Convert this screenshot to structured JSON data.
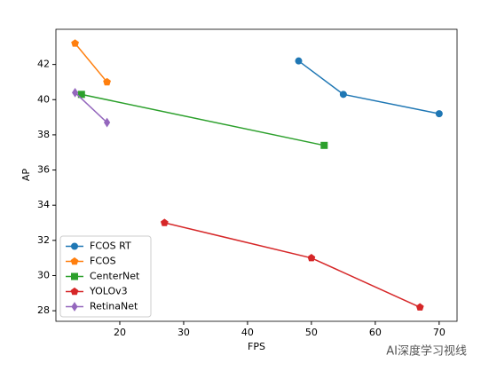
{
  "chart_data": {
    "type": "line",
    "xlabel": "FPS",
    "ylabel": "AP",
    "xlim": [
      10,
      72.8
    ],
    "ylim": [
      27.4,
      44.0
    ],
    "xticks": [
      20,
      30,
      40,
      50,
      60,
      70
    ],
    "yticks": [
      28,
      30,
      32,
      34,
      36,
      38,
      40,
      42
    ],
    "legend": "lower left",
    "series": [
      {
        "name": "FCOS RT",
        "color": "#1f77b4",
        "marker": "circle",
        "x": [
          48,
          55,
          70
        ],
        "values": [
          42.2,
          40.3,
          39.2
        ]
      },
      {
        "name": "FCOS",
        "color": "#ff7f0e",
        "marker": "pentagon",
        "x": [
          13,
          18
        ],
        "values": [
          43.2,
          41.0
        ]
      },
      {
        "name": "CenterNet",
        "color": "#2ca02c",
        "marker": "square",
        "x": [
          14,
          52
        ],
        "values": [
          40.3,
          37.4
        ]
      },
      {
        "name": "YOLOv3",
        "color": "#d62728",
        "marker": "pentagon",
        "x": [
          27,
          50,
          67
        ],
        "values": [
          33.0,
          31.0,
          28.2
        ]
      },
      {
        "name": "RetinaNet",
        "color": "#9467bd",
        "marker": "diamond",
        "x": [
          13,
          18
        ],
        "values": [
          40.4,
          38.7
        ]
      }
    ],
    "watermark": "AI深度学习视线"
  }
}
